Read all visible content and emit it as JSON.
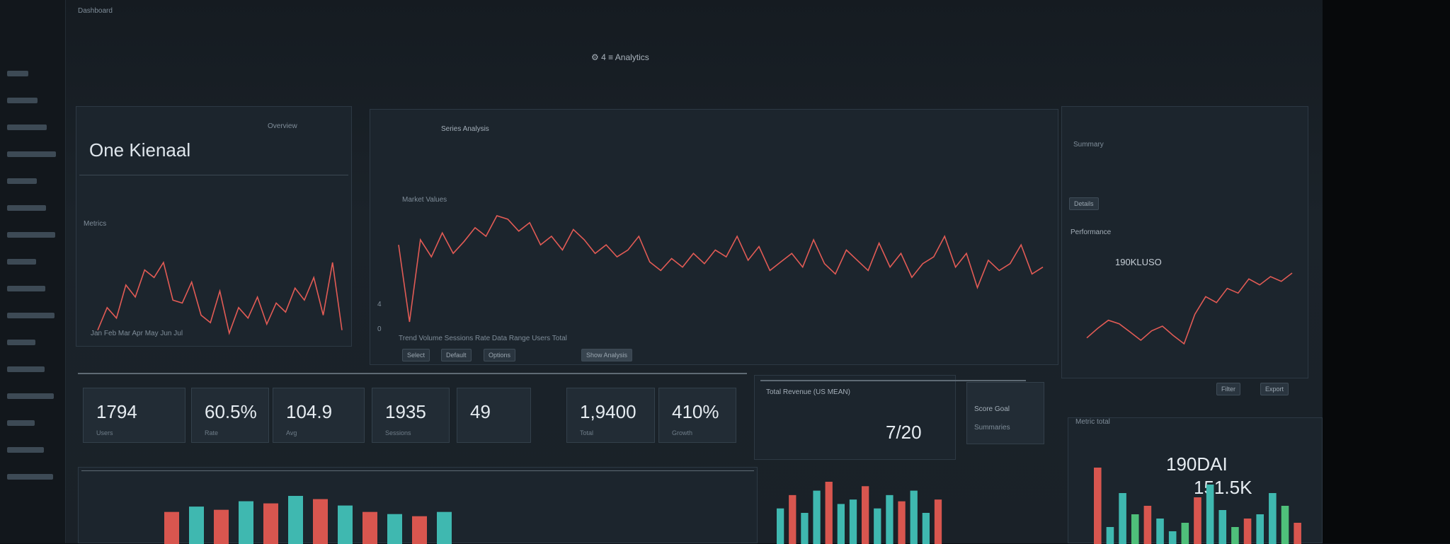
{
  "colors": {
    "line": "#e25b55",
    "bar_red": "#d8564f",
    "bar_teal": "#3fb8b0",
    "bar_green": "#4fc07a",
    "background": "#1a2128"
  },
  "topbar": {
    "left_text": "Dashboard",
    "center_text": "⚙ 4 ≡  Analytics"
  },
  "sidebar": {
    "items": [
      "",
      "",
      "",
      "",
      "",
      "",
      "",
      "",
      "",
      "",
      "",
      "",
      "",
      "",
      "",
      ""
    ]
  },
  "left_panel": {
    "title": "One Kienaal",
    "header_text": "Overview",
    "sub_label": "Metrics",
    "x_labels": "Jan  Feb  Mar  Apr  May  Jun  Jul",
    "series": [
      40,
      55,
      48,
      70,
      62,
      80,
      75,
      85,
      60,
      58,
      72,
      50,
      45,
      66,
      38,
      55,
      48,
      62,
      44,
      58,
      52,
      68,
      60,
      75,
      50,
      85,
      40
    ]
  },
  "center_panel": {
    "header_text": "Series Analysis",
    "sub_label": "Market Values",
    "y_labels": [
      "4",
      "0"
    ],
    "x_labels": "Trend  Volume  Sessions  Rate  Data  Range  Users  Total",
    "buttons": [
      "Select",
      "Default",
      "Options",
      "Show Analysis"
    ],
    "series": [
      55,
      10,
      58,
      48,
      62,
      50,
      57,
      65,
      60,
      72,
      70,
      63,
      68,
      55,
      60,
      52,
      64,
      58,
      50,
      55,
      48,
      52,
      60,
      45,
      40,
      47,
      42,
      50,
      44,
      52,
      48,
      60,
      46,
      54,
      40,
      45,
      50,
      42,
      58,
      44,
      38,
      52,
      46,
      40,
      56,
      42,
      50,
      36,
      44,
      48,
      60,
      42,
      50,
      30,
      46,
      40,
      44,
      55,
      38,
      42
    ]
  },
  "right_panel": {
    "header_text": "Summary",
    "tab_label": "Details",
    "title": "Performance",
    "value_label": "190KLUSO",
    "buttons": [
      "Filter",
      "Export"
    ],
    "series": [
      20,
      28,
      35,
      32,
      25,
      18,
      26,
      30,
      22,
      15,
      40,
      55,
      50,
      62,
      58,
      70,
      65,
      72,
      68,
      75
    ]
  },
  "kpis": [
    {
      "value": "1794",
      "label": "Users"
    },
    {
      "value": "60.5%",
      "label": "Rate"
    },
    {
      "value": "104.9",
      "label": "Avg"
    },
    {
      "value": "1935",
      "label": "Sessions"
    },
    {
      "value": "49",
      "label": ""
    },
    {
      "value": "1,9400",
      "label": "Total"
    },
    {
      "value": "410%",
      "label": "Growth"
    }
  ],
  "mid_panel": {
    "title": "Total Revenue (US MEAN)",
    "value": "7/20"
  },
  "side_card": {
    "title": "Score Goal",
    "sub": "Summaries"
  },
  "bottom_right": {
    "label": "Metric total",
    "value1": "190DAI",
    "value2": "151.5K",
    "bars": [
      90,
      20,
      60,
      35,
      45,
      30,
      15,
      25,
      55,
      70,
      40,
      20,
      30,
      35,
      60,
      45,
      25
    ]
  },
  "bottom_left": {
    "bars": [
      30,
      35,
      32,
      40,
      38,
      45,
      42,
      36,
      30,
      28,
      26,
      30
    ]
  },
  "bottom_mid": {
    "bars": [
      40,
      55,
      35,
      60,
      70,
      45,
      50,
      65,
      40,
      55,
      48,
      60,
      35,
      50
    ]
  }
}
